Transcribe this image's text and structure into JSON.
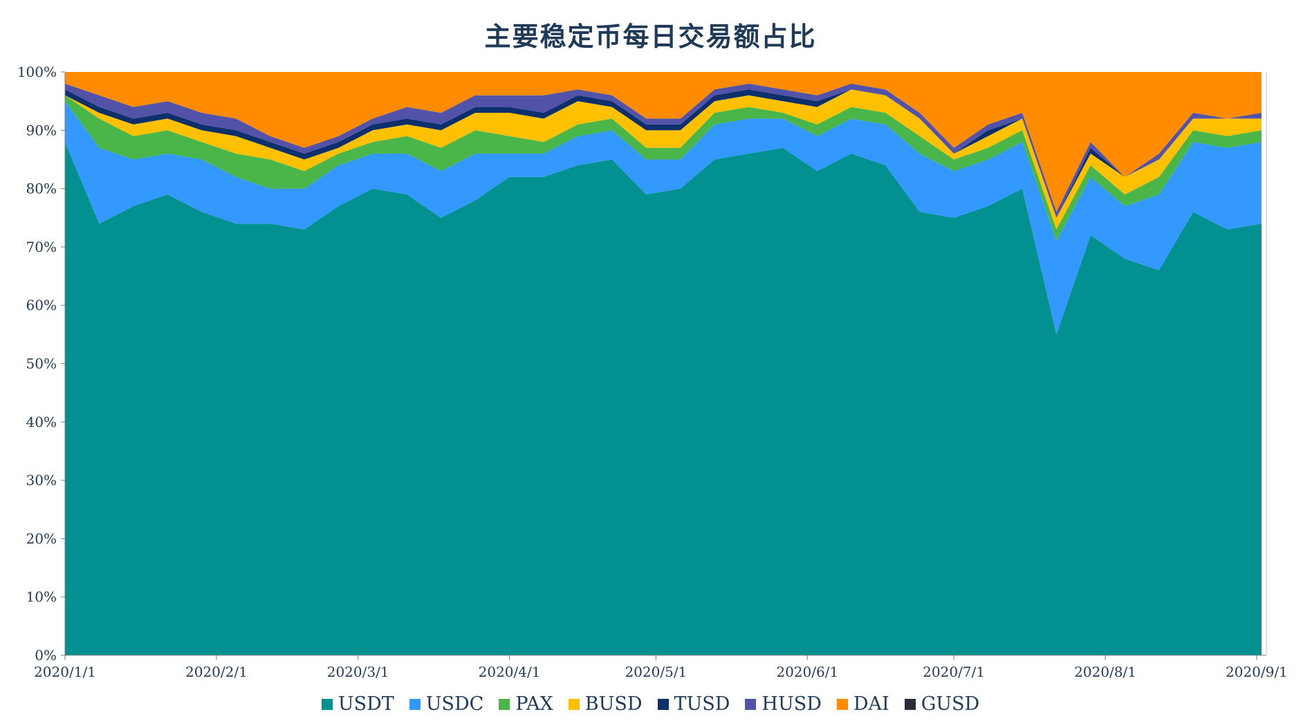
{
  "chart_data": {
    "type": "area",
    "stacked": true,
    "percent": true,
    "title": "主要稳定币每日交易额占比",
    "xlabel": "",
    "ylabel": "",
    "ylim": [
      0,
      100
    ],
    "y_ticks": [
      "0%",
      "10%",
      "20%",
      "30%",
      "40%",
      "50%",
      "60%",
      "70%",
      "80%",
      "90%",
      "100%"
    ],
    "x_ticks": [
      "2020/1/1",
      "2020/2/1",
      "2020/3/1",
      "2020/4/1",
      "2020/5/1",
      "2020/6/1",
      "2020/7/1",
      "2020/8/1",
      "2020/9/1"
    ],
    "x_range": [
      "2020/1/1",
      "2020/9/3"
    ],
    "grid": false,
    "legend_position": "bottom",
    "x": [
      "2020/1/1",
      "2020/1/8",
      "2020/1/15",
      "2020/1/22",
      "2020/1/29",
      "2020/2/5",
      "2020/2/12",
      "2020/2/19",
      "2020/2/26",
      "2020/3/4",
      "2020/3/11",
      "2020/3/18",
      "2020/3/25",
      "2020/4/1",
      "2020/4/8",
      "2020/4/15",
      "2020/4/22",
      "2020/4/29",
      "2020/5/6",
      "2020/5/13",
      "2020/5/20",
      "2020/5/27",
      "2020/6/3",
      "2020/6/10",
      "2020/6/17",
      "2020/6/24",
      "2020/7/1",
      "2020/7/8",
      "2020/7/15",
      "2020/7/22",
      "2020/7/29",
      "2020/8/5",
      "2020/8/12",
      "2020/8/19",
      "2020/8/26",
      "2020/9/2"
    ],
    "series": [
      {
        "name": "USDT",
        "color": "#039090",
        "values": [
          88,
          74,
          77,
          79,
          76,
          74,
          74,
          73,
          77,
          80,
          79,
          75,
          78,
          82,
          82,
          84,
          85,
          79,
          80,
          85,
          86,
          87,
          83,
          86,
          84,
          76,
          75,
          77,
          80,
          55,
          72,
          68,
          66,
          76,
          73,
          74
        ]
      },
      {
        "name": "USDC",
        "color": "#3399ff",
        "values": [
          7,
          13,
          8,
          7,
          9,
          8,
          6,
          7,
          7,
          6,
          7,
          8,
          8,
          4,
          4,
          5,
          5,
          6,
          5,
          6,
          6,
          5,
          6,
          6,
          7,
          10,
          8,
          8,
          8,
          16,
          10,
          9,
          13,
          12,
          14,
          14
        ]
      },
      {
        "name": "PAX",
        "color": "#4ab649",
        "values": [
          1,
          5,
          4,
          4,
          3,
          4,
          5,
          3,
          2,
          2,
          3,
          4,
          4,
          3,
          2,
          2,
          2,
          2,
          2,
          2,
          2,
          1,
          2,
          2,
          2,
          3,
          2,
          2,
          2,
          2,
          2,
          2,
          3,
          2,
          2,
          2
        ]
      },
      {
        "name": "BUSD",
        "color": "#ffc000",
        "values": [
          0,
          1,
          2,
          2,
          2,
          3,
          2,
          2,
          1,
          2,
          2,
          3,
          3,
          4,
          4,
          4,
          2,
          3,
          3,
          2,
          2,
          2,
          3,
          3,
          3,
          3,
          1,
          2,
          2,
          2,
          2,
          3,
          3,
          2,
          3,
          2
        ]
      },
      {
        "name": "TUSD",
        "color": "#0d2f6b",
        "values": [
          1,
          1,
          1,
          1,
          1,
          1,
          1,
          1,
          1,
          1,
          1,
          1,
          1,
          1,
          1,
          1,
          1,
          1,
          1,
          1,
          1,
          1,
          1,
          0,
          0,
          0,
          0,
          1,
          0,
          0,
          1,
          0,
          0,
          0,
          0,
          0
        ]
      },
      {
        "name": "HUSD",
        "color": "#5252a8",
        "values": [
          1,
          2,
          2,
          2,
          2,
          2,
          1,
          1,
          1,
          1,
          2,
          2,
          2,
          2,
          3,
          1,
          1,
          1,
          1,
          1,
          1,
          1,
          1,
          1,
          1,
          1,
          1,
          1,
          1,
          1,
          1,
          0,
          1,
          1,
          0,
          1
        ]
      },
      {
        "name": "DAI",
        "color": "#ff8c00",
        "values": [
          2,
          4,
          6,
          5,
          7,
          8,
          11,
          13,
          11,
          8,
          6,
          7,
          4,
          4,
          4,
          3,
          4,
          8,
          8,
          3,
          2,
          3,
          4,
          2,
          3,
          7,
          13,
          9,
          7,
          24,
          12,
          18,
          14,
          7,
          8,
          7
        ]
      },
      {
        "name": "GUSD",
        "color": "#2b2b3a",
        "values": [
          0,
          0,
          0,
          0,
          0,
          0,
          0,
          0,
          0,
          0,
          0,
          0,
          0,
          0,
          0,
          0,
          0,
          0,
          0,
          0,
          0,
          0,
          0,
          0,
          0,
          0,
          0,
          0,
          0,
          0,
          0,
          0,
          0,
          0,
          0,
          0
        ]
      }
    ]
  }
}
